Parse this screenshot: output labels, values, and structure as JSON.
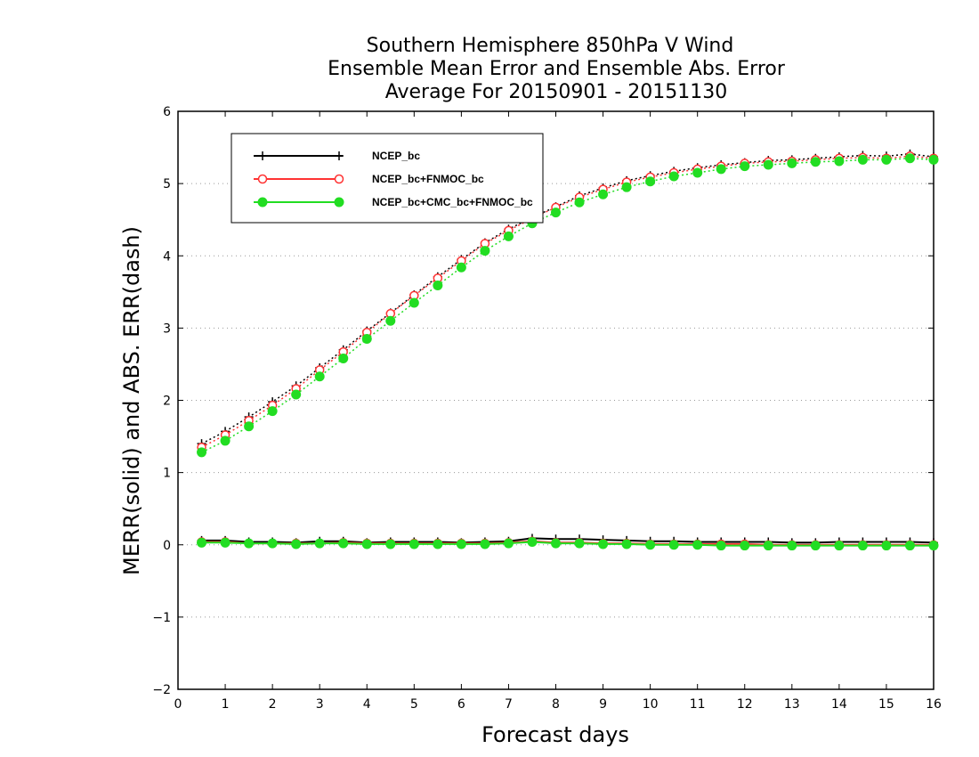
{
  "chart_data": {
    "type": "line",
    "title_lines": [
      "Southern Hemisphere 850hPa V Wind",
      "Ensemble Mean Error and Ensemble Abs. Error",
      "Average For 20150901 - 20151130"
    ],
    "xlabel": "Forecast days",
    "ylabel": "MERR(solid) and ABS. ERR(dash)",
    "xlim": [
      0,
      16
    ],
    "ylim": [
      -2,
      6
    ],
    "xticks": [
      0,
      1,
      2,
      3,
      4,
      5,
      6,
      7,
      8,
      9,
      10,
      11,
      12,
      13,
      14,
      15,
      16
    ],
    "yticks": [
      -2,
      -1,
      0,
      1,
      2,
      3,
      4,
      5,
      6
    ],
    "grid": "horizontal-dotted",
    "legend_position": "top-left",
    "x": [
      0.5,
      1.0,
      1.5,
      2.0,
      2.5,
      3.0,
      3.5,
      4.0,
      4.5,
      5.0,
      5.5,
      6.0,
      6.5,
      7.0,
      7.5,
      8.0,
      8.5,
      9.0,
      9.5,
      10.0,
      10.5,
      11.0,
      11.5,
      12.0,
      12.5,
      13.0,
      13.5,
      14.0,
      14.5,
      15.0,
      15.5,
      16.0
    ],
    "series": [
      {
        "name": "NCEP_bc",
        "color": "#000000",
        "marker": "plus",
        "merr": [
          0.06,
          0.06,
          0.04,
          0.04,
          0.03,
          0.05,
          0.05,
          0.03,
          0.04,
          0.04,
          0.04,
          0.03,
          0.04,
          0.05,
          0.09,
          0.08,
          0.08,
          0.07,
          0.06,
          0.05,
          0.05,
          0.04,
          0.04,
          0.04,
          0.04,
          0.03,
          0.03,
          0.04,
          0.04,
          0.04,
          0.04,
          0.03
        ],
        "abs_err": [
          1.4,
          1.57,
          1.77,
          1.98,
          2.2,
          2.45,
          2.7,
          2.96,
          3.21,
          3.46,
          3.71,
          3.95,
          4.18,
          4.37,
          4.53,
          4.68,
          4.83,
          4.94,
          5.04,
          5.11,
          5.17,
          5.22,
          5.26,
          5.29,
          5.32,
          5.33,
          5.35,
          5.37,
          5.39,
          5.38,
          5.41,
          5.37
        ]
      },
      {
        "name": "NCEP_bc+FNMOC_bc",
        "color": "#ff3333",
        "marker": "open-circle",
        "merr": [
          0.04,
          0.04,
          0.02,
          0.02,
          0.02,
          0.02,
          0.03,
          0.02,
          0.02,
          0.02,
          0.02,
          0.02,
          0.02,
          0.03,
          0.05,
          0.03,
          0.03,
          0.02,
          0.02,
          0.01,
          0.01,
          0.01,
          0.01,
          0.01,
          0.0,
          0.0,
          0.0,
          0.0,
          0.0,
          0.0,
          0.0,
          0.0
        ],
        "abs_err": [
          1.35,
          1.52,
          1.72,
          1.93,
          2.16,
          2.42,
          2.67,
          2.94,
          3.2,
          3.45,
          3.69,
          3.93,
          4.17,
          4.35,
          4.52,
          4.67,
          4.81,
          4.92,
          5.02,
          5.09,
          5.15,
          5.2,
          5.24,
          5.28,
          5.3,
          5.31,
          5.33,
          5.35,
          5.36,
          5.35,
          5.38,
          5.35
        ]
      },
      {
        "name": "NCEP_bc+CMC_bc+FNMOC_bc",
        "color": "#22dd22",
        "marker": "filled-circle",
        "merr": [
          0.03,
          0.03,
          0.02,
          0.02,
          0.01,
          0.02,
          0.02,
          0.01,
          0.01,
          0.01,
          0.01,
          0.01,
          0.01,
          0.02,
          0.04,
          0.02,
          0.02,
          0.01,
          0.01,
          0.0,
          0.0,
          0.0,
          -0.01,
          -0.01,
          -0.01,
          -0.01,
          -0.01,
          -0.01,
          -0.01,
          -0.01,
          -0.01,
          -0.01
        ],
        "abs_err": [
          1.28,
          1.44,
          1.64,
          1.85,
          2.08,
          2.33,
          2.58,
          2.85,
          3.1,
          3.35,
          3.59,
          3.84,
          4.07,
          4.27,
          4.45,
          4.6,
          4.74,
          4.85,
          4.95,
          5.03,
          5.1,
          5.15,
          5.2,
          5.24,
          5.26,
          5.28,
          5.3,
          5.31,
          5.33,
          5.33,
          5.35,
          5.33
        ]
      }
    ]
  }
}
